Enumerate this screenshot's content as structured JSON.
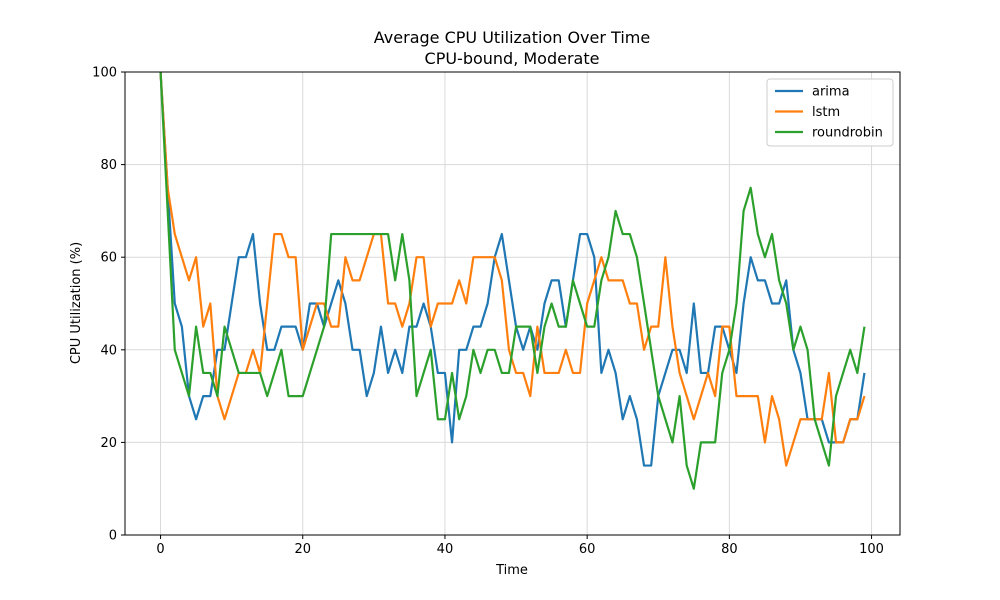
{
  "chart_data": {
    "type": "line",
    "title": "Average CPU Utilization Over Time",
    "subtitle": "CPU-bound, Moderate",
    "xlabel": "Time",
    "ylabel": "CPU Utilization (%)",
    "xlim": [
      -5,
      104
    ],
    "ylim": [
      0,
      100
    ],
    "xticks": [
      0,
      20,
      40,
      60,
      80,
      100
    ],
    "yticks": [
      0,
      20,
      40,
      60,
      80,
      100
    ],
    "grid": true,
    "legend_position": "top-right",
    "series": [
      {
        "name": "arima",
        "color": "#1f77b4",
        "values": [
          100,
          75,
          50,
          45,
          30,
          25,
          30,
          30,
          40,
          40,
          50,
          60,
          60,
          65,
          50,
          40,
          40,
          45,
          45,
          45,
          40,
          50,
          50,
          45,
          50,
          55,
          50,
          40,
          40,
          30,
          35,
          45,
          35,
          40,
          35,
          45,
          45,
          50,
          45,
          35,
          35,
          20,
          40,
          40,
          45,
          45,
          50,
          60,
          65,
          55,
          45,
          40,
          45,
          40,
          50,
          55,
          55,
          45,
          55,
          65,
          65,
          60,
          35,
          40,
          35,
          25,
          30,
          25,
          15,
          15,
          30,
          35,
          40,
          40,
          35,
          50,
          35,
          35,
          45,
          45,
          40,
          35,
          50,
          60,
          55,
          55,
          50,
          50,
          55,
          40,
          35,
          25,
          25,
          25,
          20,
          20,
          20,
          25,
          25,
          35
        ]
      },
      {
        "name": "lstm",
        "color": "#ff7f0e",
        "values": [
          100,
          75,
          65,
          60,
          55,
          60,
          45,
          50,
          30,
          25,
          30,
          35,
          35,
          40,
          35,
          50,
          65,
          65,
          60,
          60,
          40,
          45,
          50,
          50,
          45,
          45,
          60,
          55,
          55,
          60,
          65,
          65,
          50,
          50,
          45,
          50,
          60,
          60,
          45,
          50,
          50,
          50,
          55,
          50,
          60,
          60,
          60,
          60,
          55,
          40,
          35,
          35,
          30,
          45,
          35,
          35,
          35,
          40,
          35,
          35,
          50,
          55,
          60,
          55,
          55,
          55,
          50,
          50,
          40,
          45,
          45,
          60,
          45,
          35,
          30,
          25,
          30,
          35,
          30,
          45,
          45,
          30,
          30,
          30,
          30,
          20,
          30,
          25,
          15,
          20,
          25,
          25,
          25,
          25,
          35,
          20,
          20,
          25,
          25,
          30
        ]
      },
      {
        "name": "roundrobin",
        "color": "#2ca02c",
        "values": [
          100,
          70,
          40,
          35,
          30,
          45,
          35,
          35,
          30,
          45,
          40,
          35,
          35,
          35,
          35,
          30,
          35,
          40,
          30,
          30,
          30,
          35,
          40,
          45,
          65,
          65,
          65,
          65,
          65,
          65,
          65,
          65,
          65,
          55,
          65,
          55,
          30,
          35,
          40,
          25,
          25,
          35,
          25,
          30,
          40,
          35,
          40,
          40,
          35,
          35,
          45,
          45,
          45,
          35,
          45,
          50,
          45,
          45,
          55,
          50,
          45,
          45,
          55,
          60,
          70,
          65,
          65,
          60,
          50,
          40,
          30,
          25,
          20,
          30,
          15,
          10,
          20,
          20,
          20,
          35,
          40,
          50,
          70,
          75,
          65,
          60,
          65,
          55,
          50,
          40,
          45,
          40,
          25,
          20,
          15,
          30,
          35,
          40,
          35,
          45
        ]
      }
    ]
  }
}
